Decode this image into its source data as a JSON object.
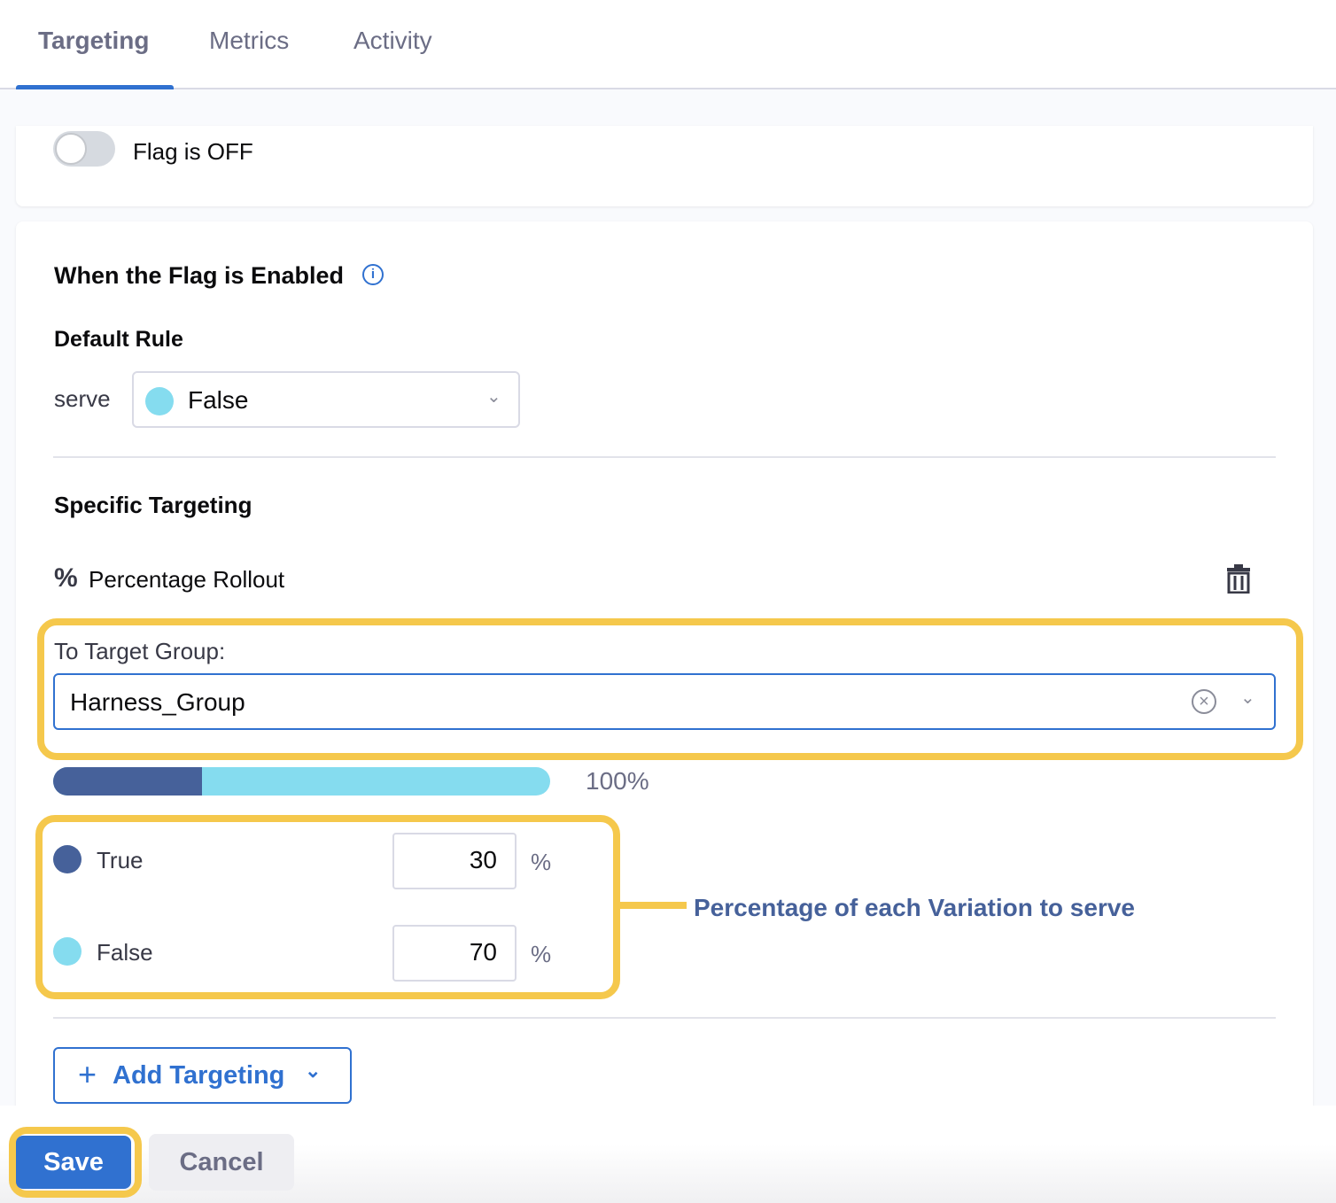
{
  "tabs": [
    {
      "label": "Targeting",
      "active": true
    },
    {
      "label": "Metrics"
    },
    {
      "label": "Activity"
    }
  ],
  "flag": {
    "label": "Flag is OFF",
    "on": false
  },
  "enabled": {
    "title": "When the Flag is Enabled",
    "default_rule": "Default Rule",
    "serve_label": "serve",
    "serve_value": "False",
    "serve_color": "#85dcef"
  },
  "specific": {
    "title": "Specific Targeting",
    "rollout_label": "Percentage Rollout",
    "target_group_label": "To Target Group:",
    "target_group_value": "Harness_Group",
    "total": "100%",
    "variations": [
      {
        "name": "True",
        "value": "30",
        "unit": "%",
        "color": "#46619a"
      },
      {
        "name": "False",
        "value": "70",
        "unit": "%",
        "color": "#85dcef"
      }
    ]
  },
  "annotation": "Percentage of each Variation to serve",
  "add_targeting": "Add Targeting",
  "footer": {
    "save": "Save",
    "cancel": "Cancel"
  },
  "colors": {
    "accent": "#3071d0",
    "highlight": "#f5c84c"
  }
}
